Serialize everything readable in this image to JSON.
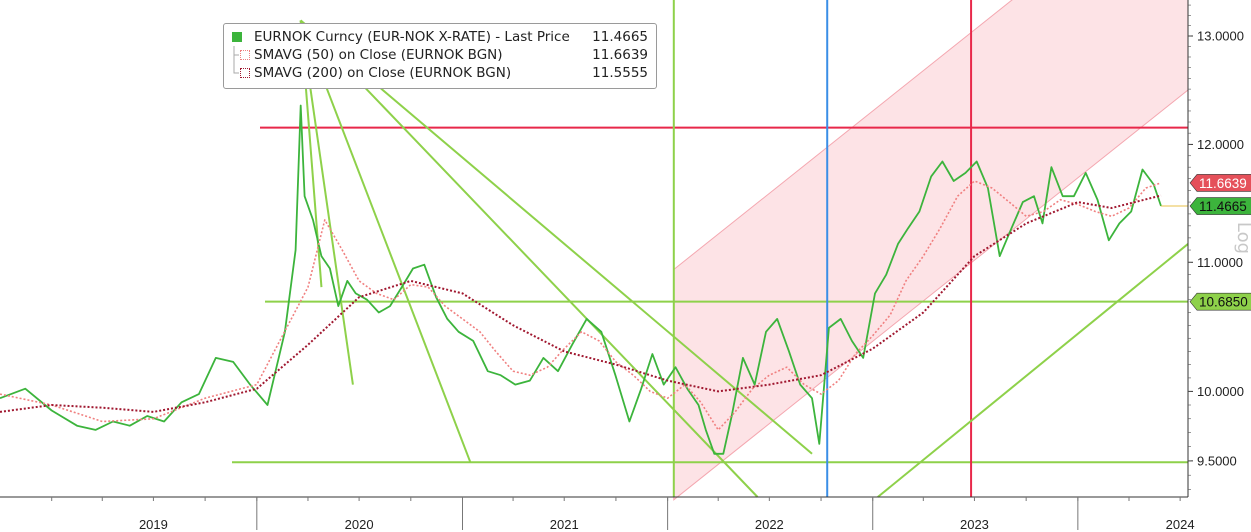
{
  "chart_data": {
    "type": "line",
    "title": "",
    "xlabel": "",
    "ylabel": "",
    "scale": "log",
    "scale_label": "Log",
    "x_tick_labels": [
      "2019",
      "2020",
      "2021",
      "2022",
      "2023",
      "2024"
    ],
    "y_tick_labels": [
      "9.5000",
      "10.0000",
      "11.0000",
      "12.0000",
      "13.0000"
    ],
    "y_ticks": [
      9.5,
      10.0,
      11.0,
      12.0,
      13.0
    ],
    "ylim": [
      9.25,
      13.35
    ],
    "xlim": [
      "2018-10-01",
      "2024-07-15"
    ],
    "legend_position": "top-left",
    "legend": [
      {
        "name": "EURNOK Curncy (EUR-NOK X-RATE) - Last Price",
        "value": "11.4665",
        "color": "#3cb43c"
      },
      {
        "name": "SMAVG (50)  on Close (EURNOK BGN)",
        "value": "11.6639",
        "color": "#f08080"
      },
      {
        "name": "SMAVG (200)  on Close (EURNOK BGN)",
        "value": "11.5555",
        "color": "#a01830"
      }
    ],
    "price_tags": [
      {
        "label": "11.6639",
        "value": 11.6639,
        "color": "#e5505a"
      },
      {
        "label": "11.4665",
        "value": 11.4665,
        "color": "#3cb43c"
      },
      {
        "label": "10.6850",
        "value": 10.685,
        "color": "#8ed14a"
      }
    ],
    "series": [
      {
        "name": "EURNOK Curncy (EUR-NOK X-RATE) - Last Price",
        "x": [
          "2018-10-01",
          "2018-11-15",
          "2019-01-01",
          "2019-02-15",
          "2019-03-20",
          "2019-04-20",
          "2019-05-20",
          "2019-06-20",
          "2019-07-20",
          "2019-08-20",
          "2019-09-20",
          "2019-10-20",
          "2019-11-20",
          "2019-12-20",
          "2020-01-20",
          "2020-02-20",
          "2020-03-10",
          "2020-03-19",
          "2020-03-26",
          "2020-04-10",
          "2020-04-25",
          "2020-05-10",
          "2020-05-25",
          "2020-06-10",
          "2020-06-25",
          "2020-07-15",
          "2020-08-05",
          "2020-08-25",
          "2020-09-15",
          "2020-10-05",
          "2020-10-25",
          "2020-11-15",
          "2020-12-05",
          "2020-12-25",
          "2021-01-20",
          "2021-02-15",
          "2021-03-10",
          "2021-04-05",
          "2021-05-01",
          "2021-05-25",
          "2021-06-20",
          "2021-07-15",
          "2021-08-10",
          "2021-09-05",
          "2021-09-30",
          "2021-10-25",
          "2021-11-15",
          "2021-12-05",
          "2021-12-25",
          "2022-01-15",
          "2022-02-05",
          "2022-02-25",
          "2022-03-10",
          "2022-03-25",
          "2022-04-10",
          "2022-04-25",
          "2022-05-15",
          "2022-06-05",
          "2022-06-25",
          "2022-07-15",
          "2022-08-05",
          "2022-08-25",
          "2022-09-15",
          "2022-09-28",
          "2022-10-15",
          "2022-11-05",
          "2022-11-25",
          "2022-12-15",
          "2023-01-05",
          "2023-01-25",
          "2023-02-15",
          "2023-03-05",
          "2023-03-25",
          "2023-04-15",
          "2023-05-05",
          "2023-05-25",
          "2023-06-15",
          "2023-07-05",
          "2023-07-25",
          "2023-08-15",
          "2023-09-05",
          "2023-09-25",
          "2023-10-15",
          "2023-10-30",
          "2023-11-15",
          "2023-12-05",
          "2023-12-25",
          "2024-01-15",
          "2024-02-05",
          "2024-02-25",
          "2024-03-15",
          "2024-04-05",
          "2024-04-25",
          "2024-05-15",
          "2024-05-28"
        ],
        "values": [
          9.95,
          10.02,
          9.86,
          9.75,
          9.72,
          9.78,
          9.75,
          9.82,
          9.78,
          9.92,
          9.98,
          10.25,
          10.22,
          10.05,
          9.9,
          10.45,
          11.1,
          12.35,
          11.55,
          11.35,
          11.05,
          10.95,
          10.65,
          10.85,
          10.75,
          10.7,
          10.6,
          10.65,
          10.8,
          10.95,
          10.98,
          10.72,
          10.55,
          10.45,
          10.38,
          10.15,
          10.12,
          10.05,
          10.08,
          10.25,
          10.15,
          10.35,
          10.55,
          10.45,
          10.12,
          9.78,
          10.02,
          10.28,
          10.05,
          10.18,
          10.02,
          9.9,
          9.72,
          9.55,
          9.55,
          9.82,
          10.25,
          10.05,
          10.45,
          10.55,
          10.3,
          10.05,
          9.95,
          9.62,
          10.48,
          10.55,
          10.38,
          10.25,
          10.75,
          10.9,
          11.15,
          11.28,
          11.42,
          11.72,
          11.85,
          11.68,
          11.75,
          11.85,
          11.62,
          11.05,
          11.28,
          11.5,
          11.55,
          11.32,
          11.8,
          11.55,
          11.55,
          11.75,
          11.52,
          11.18,
          11.32,
          11.42,
          11.78,
          11.65,
          11.4665
        ]
      },
      {
        "name": "SMAVG (50)  on Close (EURNOK BGN)",
        "x": [
          "2018-10-01",
          "2019-01-01",
          "2019-04-01",
          "2019-07-01",
          "2019-10-01",
          "2020-01-01",
          "2020-04-01",
          "2020-05-01",
          "2020-06-01",
          "2020-07-01",
          "2020-08-01",
          "2020-09-01",
          "2020-10-01",
          "2020-11-01",
          "2020-12-01",
          "2021-01-01",
          "2021-02-01",
          "2021-03-01",
          "2021-04-01",
          "2021-05-01",
          "2021-06-01",
          "2021-07-01",
          "2021-08-01",
          "2021-09-01",
          "2021-10-01",
          "2021-11-01",
          "2021-12-01",
          "2022-01-01",
          "2022-02-01",
          "2022-03-01",
          "2022-04-01",
          "2022-05-01",
          "2022-06-01",
          "2022-07-01",
          "2022-08-01",
          "2022-09-01",
          "2022-10-01",
          "2022-11-01",
          "2022-12-01",
          "2023-01-01",
          "2023-02-01",
          "2023-03-01",
          "2023-04-01",
          "2023-05-01",
          "2023-06-01",
          "2023-07-01",
          "2023-08-01",
          "2023-09-01",
          "2023-10-01",
          "2023-11-01",
          "2023-12-01",
          "2024-01-01",
          "2024-02-01",
          "2024-03-01",
          "2024-04-01",
          "2024-05-01",
          "2024-05-28"
        ],
        "values": [
          9.98,
          9.9,
          9.78,
          9.8,
          9.95,
          10.05,
          10.8,
          11.35,
          11.1,
          10.85,
          10.75,
          10.7,
          10.82,
          10.8,
          10.65,
          10.55,
          10.45,
          10.3,
          10.15,
          10.12,
          10.18,
          10.32,
          10.45,
          10.38,
          10.22,
          10.12,
          10.0,
          9.95,
          10.05,
          9.92,
          9.72,
          9.85,
          10.02,
          10.12,
          10.18,
          10.05,
          9.98,
          10.08,
          10.28,
          10.42,
          10.58,
          10.85,
          11.05,
          11.28,
          11.55,
          11.68,
          11.62,
          11.5,
          11.38,
          11.42,
          11.52,
          11.48,
          11.42,
          11.38,
          11.45,
          11.62,
          11.6639
        ]
      },
      {
        "name": "SMAVG (200)  on Close (EURNOK BGN)",
        "x": [
          "2018-10-01",
          "2019-01-01",
          "2019-04-01",
          "2019-07-01",
          "2019-10-01",
          "2020-01-01",
          "2020-04-01",
          "2020-07-01",
          "2020-10-01",
          "2021-01-01",
          "2021-04-01",
          "2021-07-01",
          "2021-10-01",
          "2022-01-01",
          "2022-04-01",
          "2022-07-01",
          "2022-10-01",
          "2023-01-01",
          "2023-04-01",
          "2023-07-01",
          "2023-10-01",
          "2024-01-01",
          "2024-03-01",
          "2024-05-28"
        ],
        "values": [
          9.85,
          9.9,
          9.88,
          9.85,
          9.92,
          10.02,
          10.35,
          10.72,
          10.85,
          10.75,
          10.5,
          10.3,
          10.2,
          10.08,
          10.0,
          10.05,
          10.12,
          10.32,
          10.6,
          11.05,
          11.32,
          11.5,
          11.45,
          11.5555
        ]
      }
    ],
    "annotations": [
      {
        "type": "horizontal-line",
        "value": 12.15,
        "color": "#e8284a"
      },
      {
        "type": "horizontal-line",
        "value": 10.685,
        "color": "#8ed14a"
      },
      {
        "type": "horizontal-line",
        "value": 9.49,
        "color": "#8ed14a"
      },
      {
        "type": "vertical-line",
        "date": "2022-01-12",
        "color": "#8ed14a"
      },
      {
        "type": "vertical-line",
        "date": "2022-10-12",
        "color": "#3a8ee6"
      },
      {
        "type": "vertical-line",
        "date": "2023-06-25",
        "color": "#e8284a"
      },
      {
        "type": "trend-channel",
        "color": "#f4a7b0"
      },
      {
        "type": "trend-lines",
        "color": "#8ed14a"
      }
    ]
  }
}
